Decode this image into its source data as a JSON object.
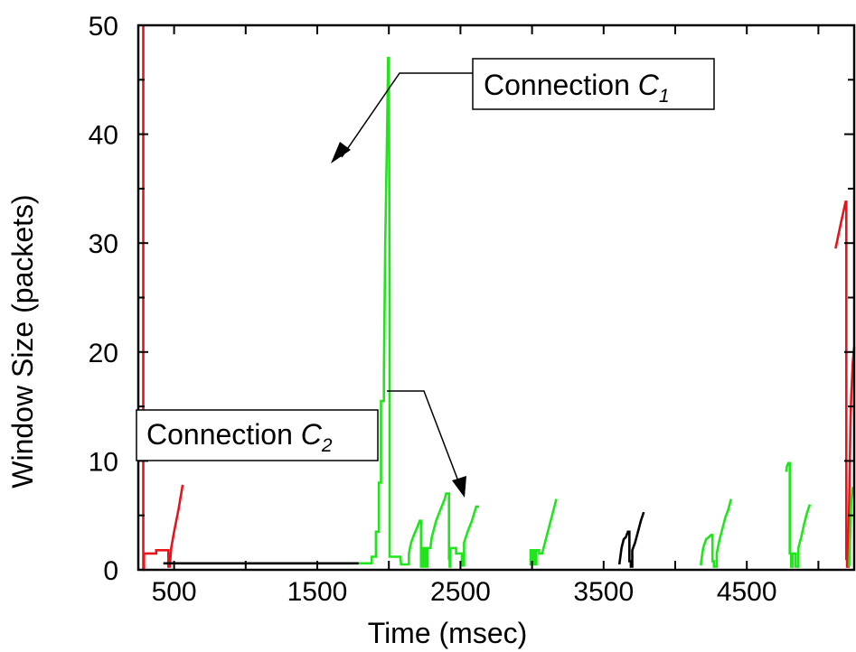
{
  "chart_data": {
    "type": "line",
    "title": "",
    "xlabel": "Time (msec)",
    "ylabel": "Window Size (packets)",
    "xlim": [
      250,
      5250
    ],
    "ylim": [
      0,
      50
    ],
    "x_ticks": [
      500,
      1500,
      2500,
      3500,
      4500
    ],
    "y_ticks": [
      0,
      10,
      20,
      30,
      40,
      50
    ],
    "grid": false,
    "legend": "none",
    "annotations": [
      {
        "label": "Connection ",
        "sub_label": "C",
        "subscript": "1",
        "arrow_tip": [
          1790,
          41.5
        ]
      },
      {
        "label": "Connection ",
        "sub_label": "C",
        "subscript": "2",
        "arrow_tip": [
          2630,
          6.5
        ]
      }
    ],
    "colors": {
      "red": "#e8141b",
      "green": "#1ee61a",
      "black": "#000000"
    },
    "series": [
      {
        "color": "red",
        "points": [
          [
            285,
            50
          ],
          [
            285,
            0
          ],
          [
            290,
            0
          ],
          [
            290,
            1.5
          ],
          [
            375,
            1.5
          ],
          [
            375,
            1.8
          ],
          [
            460,
            1.8
          ],
          [
            460,
            0.3
          ],
          [
            470,
            0.3
          ],
          [
            480,
            2
          ],
          [
            500,
            3.5
          ],
          [
            530,
            5.5
          ],
          [
            560,
            7.8
          ]
        ]
      },
      {
        "color": "black",
        "points": [
          [
            425,
            0.6
          ],
          [
            1790,
            0.6
          ]
        ]
      },
      {
        "color": "green",
        "points": [
          [
            1790,
            0.6
          ],
          [
            1880,
            0.6
          ],
          [
            1880,
            1.2
          ],
          [
            1910,
            1.2
          ],
          [
            1910,
            3.5
          ],
          [
            1930,
            3.5
          ],
          [
            1930,
            8
          ],
          [
            1945,
            8
          ],
          [
            1945,
            15.5
          ],
          [
            1965,
            15.5
          ],
          [
            1965,
            18
          ],
          [
            1975,
            30
          ],
          [
            1985,
            38
          ],
          [
            1995,
            47
          ],
          [
            2000,
            47
          ],
          [
            2005,
            25
          ],
          [
            2005,
            1.2
          ],
          [
            2080,
            1.2
          ],
          [
            2085,
            0.5
          ],
          [
            2140,
            0.5
          ],
          [
            2140,
            1.5
          ],
          [
            2155,
            2.5
          ],
          [
            2175,
            3.2
          ],
          [
            2195,
            3.8
          ],
          [
            2215,
            4.5
          ],
          [
            2225,
            4.5
          ],
          [
            2225,
            0.3
          ],
          [
            2230,
            0.3
          ],
          [
            2230,
            2
          ],
          [
            2245,
            2
          ],
          [
            2245,
            0.3
          ],
          [
            2250,
            0.3
          ],
          [
            2250,
            2
          ],
          [
            2260,
            2
          ],
          [
            2260,
            0.3
          ],
          [
            2270,
            0.3
          ],
          [
            2270,
            2
          ],
          [
            2290,
            2
          ],
          [
            2300,
            3
          ],
          [
            2330,
            4.5
          ],
          [
            2360,
            5.5
          ],
          [
            2390,
            6.5
          ],
          [
            2400,
            7
          ],
          [
            2420,
            7
          ],
          [
            2420,
            1
          ],
          [
            2425,
            1
          ],
          [
            2425,
            0.3
          ],
          [
            2430,
            0.3
          ],
          [
            2430,
            2
          ],
          [
            2470,
            2
          ],
          [
            2470,
            1.5
          ],
          [
            2510,
            1.5
          ],
          [
            2510,
            0.4
          ],
          [
            2525,
            0.4
          ],
          [
            2525,
            2.5
          ],
          [
            2550,
            3.5
          ],
          [
            2580,
            4.5
          ],
          [
            2610,
            5.8
          ],
          [
            2630,
            5.8
          ]
        ]
      },
      {
        "color": "green",
        "points": [
          [
            2990,
            0.4
          ],
          [
            2990,
            1.8
          ],
          [
            3000,
            1.8
          ],
          [
            3000,
            0.5
          ],
          [
            3010,
            0.5
          ],
          [
            3010,
            1.8
          ],
          [
            3020,
            1.8
          ],
          [
            3020,
            0.5
          ],
          [
            3030,
            0.5
          ],
          [
            3030,
            1.8
          ],
          [
            3050,
            1.8
          ],
          [
            3050,
            1.5
          ],
          [
            3070,
            1.5
          ],
          [
            3090,
            2.5
          ],
          [
            3120,
            4
          ],
          [
            3150,
            5.5
          ],
          [
            3170,
            6.5
          ]
        ]
      },
      {
        "color": "black",
        "points": [
          [
            3610,
            0.5
          ],
          [
            3625,
            2
          ],
          [
            3640,
            2.8
          ],
          [
            3655,
            3
          ],
          [
            3670,
            3.5
          ],
          [
            3680,
            3.5
          ],
          [
            3680,
            0.8
          ],
          [
            3690,
            0.8
          ],
          [
            3690,
            0.3
          ],
          [
            3700,
            0.3
          ],
          [
            3700,
            1.8
          ],
          [
            3720,
            2.5
          ],
          [
            3740,
            3.5
          ],
          [
            3760,
            4.5
          ],
          [
            3780,
            5.3
          ]
        ]
      },
      {
        "color": "green",
        "points": [
          [
            4180,
            0.4
          ],
          [
            4180,
            0.6
          ],
          [
            4195,
            2
          ],
          [
            4215,
            2.8
          ],
          [
            4235,
            3
          ],
          [
            4250,
            3.2
          ],
          [
            4260,
            3.2
          ],
          [
            4260,
            0.8
          ],
          [
            4270,
            0.8
          ],
          [
            4270,
            0.3
          ],
          [
            4290,
            0.3
          ],
          [
            4290,
            1.5
          ],
          [
            4310,
            2.8
          ],
          [
            4330,
            3.8
          ],
          [
            4350,
            4.8
          ],
          [
            4370,
            5.5
          ],
          [
            4390,
            6.5
          ]
        ]
      },
      {
        "color": "green",
        "points": [
          [
            4775,
            9
          ],
          [
            4780,
            9.5
          ],
          [
            4790,
            9.8
          ],
          [
            4800,
            9.8
          ],
          [
            4800,
            1.5
          ],
          [
            4810,
            1.5
          ],
          [
            4810,
            0.3
          ],
          [
            4820,
            0.3
          ],
          [
            4820,
            1.5
          ],
          [
            4840,
            1.5
          ],
          [
            4840,
            0.3
          ],
          [
            4860,
            0.3
          ],
          [
            4860,
            2
          ],
          [
            4880,
            3
          ],
          [
            4900,
            4.2
          ],
          [
            4920,
            5.2
          ],
          [
            4940,
            6
          ]
        ]
      },
      {
        "color": "red",
        "points": [
          [
            5120,
            29.5
          ],
          [
            5160,
            32
          ],
          [
            5190,
            33.8
          ],
          [
            5195,
            33.8
          ],
          [
            5195,
            1
          ],
          [
            5200,
            1
          ],
          [
            5200,
            0.3
          ],
          [
            5210,
            0.3
          ],
          [
            5210,
            2.5
          ],
          [
            5220,
            10
          ],
          [
            5225,
            14
          ],
          [
            5230,
            16
          ],
          [
            5235,
            17.5
          ],
          [
            5240,
            19
          ],
          [
            5250,
            20.5
          ]
        ]
      },
      {
        "color": "green",
        "points": [
          [
            5215,
            0.3
          ],
          [
            5230,
            6.5
          ],
          [
            5240,
            7.5
          ],
          [
            5250,
            7.5
          ]
        ]
      }
    ]
  }
}
